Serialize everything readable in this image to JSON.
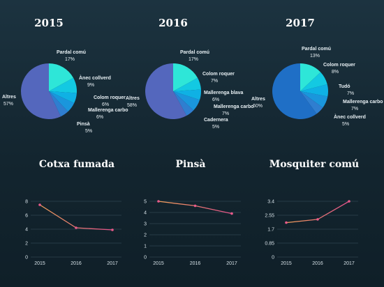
{
  "chart_data": [
    {
      "type": "pie",
      "title": "2015",
      "slices": [
        {
          "label": "Pardal comú",
          "value": 17,
          "color": "#2ee6d8"
        },
        {
          "label": "Ànec collverd",
          "value": 9,
          "color": "#13c9e2"
        },
        {
          "label": "Colom roquer",
          "value": 6,
          "color": "#0fb1e4"
        },
        {
          "label": "Mallerenga carbo",
          "value": 6,
          "color": "#1a96dc"
        },
        {
          "label": "Pinsà",
          "value": 5,
          "color": "#2f7ed0"
        },
        {
          "label": "Altres",
          "value": 57,
          "color": "#5467bd"
        }
      ]
    },
    {
      "type": "pie",
      "title": "2016",
      "slices": [
        {
          "label": "Pardal comú",
          "value": 17,
          "color": "#2ee6d8"
        },
        {
          "label": "Colom roquer",
          "value": 7,
          "color": "#13c9e2"
        },
        {
          "label": "Mallerenga blava",
          "value": 6,
          "color": "#0fb1e4"
        },
        {
          "label": "Mallerenga carbo",
          "value": 7,
          "color": "#1a96dc"
        },
        {
          "label": "Cadernera",
          "value": 5,
          "color": "#2f7ed0"
        },
        {
          "label": "Altres",
          "value": 58,
          "color": "#5467bd"
        }
      ]
    },
    {
      "type": "pie",
      "title": "2017",
      "slices": [
        {
          "label": "Pardal comú",
          "value": 13,
          "color": "#2ee6d8"
        },
        {
          "label": "Colom roquer",
          "value": 8,
          "color": "#13c9e2"
        },
        {
          "label": "Tudó",
          "value": 7,
          "color": "#0fb1e4"
        },
        {
          "label": "Mallerenga carbo",
          "value": 7,
          "color": "#1a96dc"
        },
        {
          "label": "Ànec collverd",
          "value": 5,
          "color": "#2f7ed0"
        },
        {
          "label": "Altres",
          "value": 60,
          "color": "#1f6fc6"
        }
      ]
    },
    {
      "type": "line",
      "title": "Cotxa fumada",
      "categories": [
        "2015",
        "2016",
        "2017"
      ],
      "values": [
        7.5,
        4.2,
        3.9
      ],
      "ylim": [
        0,
        8
      ],
      "yticks": [
        "0",
        "2",
        "4",
        "6",
        "8"
      ],
      "grid": true
    },
    {
      "type": "line",
      "title": "Pinsà",
      "categories": [
        "2015",
        "2016",
        "2017"
      ],
      "values": [
        5.0,
        4.6,
        3.9
      ],
      "ylim": [
        0,
        5
      ],
      "yticks": [
        "0",
        "1",
        "2",
        "3",
        "4",
        "5"
      ],
      "grid": true
    },
    {
      "type": "line",
      "title": "Mosquiter comú",
      "categories": [
        "2015",
        "2016",
        "2017"
      ],
      "values": [
        2.1,
        2.3,
        3.4
      ],
      "ylim": [
        0,
        3.4
      ],
      "yticks": [
        "0",
        "0.85",
        "1.7",
        "2.55",
        "3.4"
      ],
      "grid": true
    }
  ],
  "colors": {
    "line_start": "#f0a05a",
    "line_end": "#e0508a",
    "marker": "#e85a8a"
  }
}
